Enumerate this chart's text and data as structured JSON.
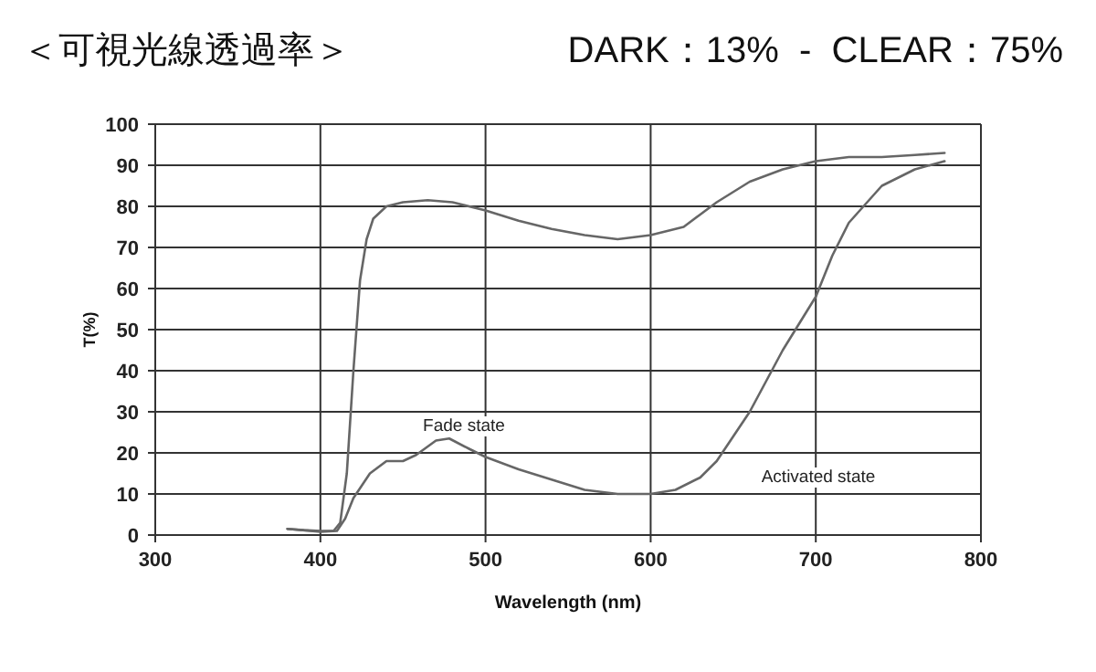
{
  "chart_data": {
    "type": "line",
    "title": "＜可視光線透過率＞",
    "subtitle": "DARK：13%  -  CLEAR：75%",
    "xlabel": "Wavelength (nm)",
    "ylabel": "T(%)",
    "xlim": [
      300,
      800
    ],
    "xticks": [
      300,
      400,
      500,
      600,
      700,
      800
    ],
    "ylim": [
      0,
      100
    ],
    "yticks": [
      0,
      10,
      20,
      30,
      40,
      50,
      60,
      70,
      80,
      90,
      100
    ],
    "grid": true,
    "marker": "none",
    "line_style": "solid",
    "series": [
      {
        "color": "#666666",
        "x": [
          380,
          390,
          400,
          408,
          412,
          416,
          420,
          424,
          428,
          432,
          440,
          450,
          465,
          480,
          500,
          520,
          540,
          560,
          580,
          600,
          620,
          630,
          640,
          660,
          680,
          700,
          720,
          740,
          760,
          778
        ],
        "values": [
          1.5,
          1.2,
          1,
          1,
          3,
          15,
          40,
          62,
          72,
          77,
          80,
          81,
          81.5,
          81,
          79,
          76.5,
          74.5,
          73,
          72,
          73,
          75,
          78,
          81,
          86,
          89,
          91,
          92,
          92,
          92.5,
          93
        ]
      },
      {
        "color": "#666666",
        "x": [
          380,
          400,
          410,
          415,
          420,
          430,
          440,
          450,
          458,
          470,
          478,
          490,
          500,
          520,
          540,
          560,
          580,
          600,
          615,
          630,
          640,
          660,
          680,
          700,
          710,
          720,
          740,
          760,
          778
        ],
        "values": [
          1.5,
          0.8,
          1,
          4,
          9,
          15,
          18,
          18,
          19.5,
          23,
          23.5,
          21,
          19,
          16,
          13.5,
          11,
          10,
          10,
          11,
          14,
          18,
          30,
          45,
          58,
          68,
          76,
          85,
          89,
          91
        ]
      }
    ],
    "annotations": [
      "Fade state",
      "Activated state"
    ]
  }
}
